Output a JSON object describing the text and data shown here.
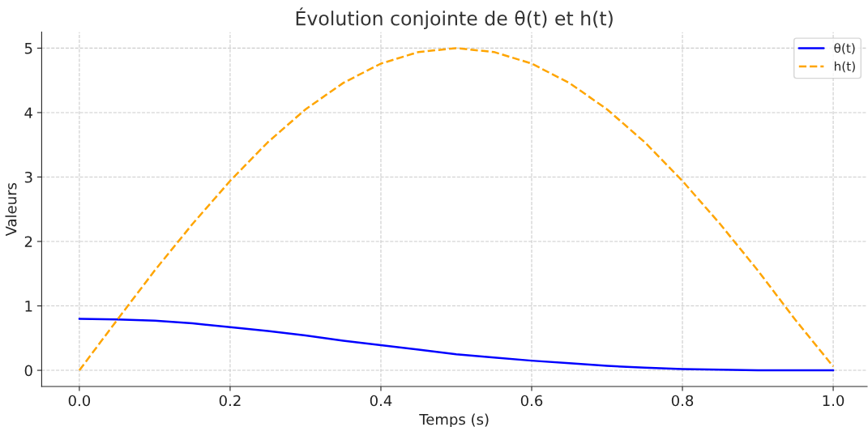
{
  "chart_data": {
    "type": "line",
    "title": "Évolution conjointe de θ(t) et h(t)",
    "xlabel": "Temps (s)",
    "ylabel": "Valeurs",
    "x": [
      0,
      0.05,
      0.1,
      0.15,
      0.2,
      0.25,
      0.3,
      0.35,
      0.4,
      0.45,
      0.5,
      0.55,
      0.6,
      0.65,
      0.7,
      0.75,
      0.8,
      0.85,
      0.9,
      0.95,
      1.0
    ],
    "series": [
      {
        "name": "θ(t)",
        "color": "#0000ff",
        "line_style": "solid",
        "values": [
          0.8,
          0.79,
          0.77,
          0.73,
          0.67,
          0.61,
          0.54,
          0.46,
          0.39,
          0.32,
          0.25,
          0.2,
          0.15,
          0.11,
          0.07,
          0.04,
          0.02,
          0.01,
          0.0,
          0.0,
          0.0
        ]
      },
      {
        "name": "h(t)",
        "color": "#ffa500",
        "line_style": "dashed",
        "values": [
          0,
          0.78,
          1.55,
          2.27,
          2.94,
          3.54,
          4.05,
          4.46,
          4.76,
          4.94,
          5.0,
          4.94,
          4.76,
          4.46,
          4.05,
          3.54,
          2.94,
          2.27,
          1.55,
          0.78,
          0.06
        ]
      }
    ],
    "xlim": [
      -0.05,
      1.045
    ],
    "ylim": [
      -0.25,
      5.25
    ],
    "xticks": [
      {
        "value": 0,
        "label": "0.0"
      },
      0.2,
      0.4,
      0.6,
      0.8,
      {
        "value": 1,
        "label": "1.0"
      }
    ],
    "yticks": [
      0,
      1,
      2,
      3,
      4,
      5
    ],
    "grid": true,
    "legend": "top right"
  }
}
